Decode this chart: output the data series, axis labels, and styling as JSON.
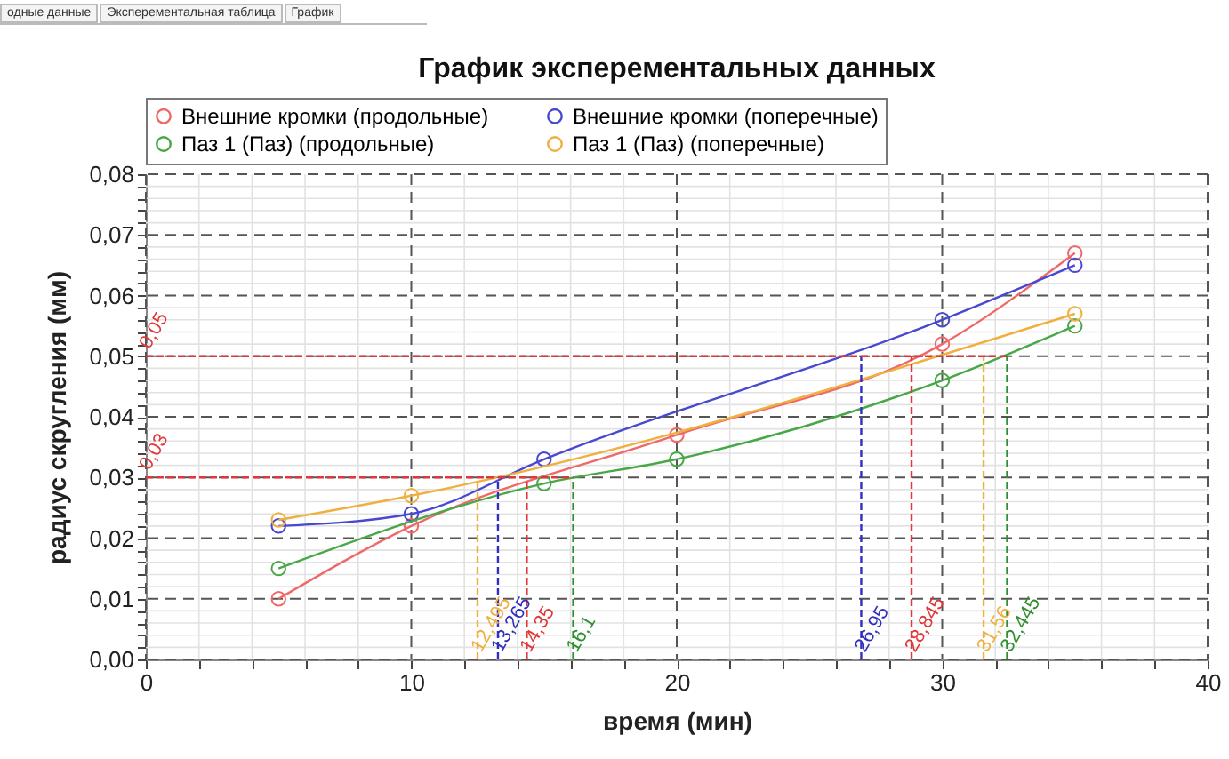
{
  "chart_data": {
    "type": "line",
    "title": "График эксперементальных данных",
    "xlabel": "время (мин)",
    "ylabel": "радиус скругления (мм)",
    "series": [
      {
        "name": "Внешние кромки (продольные)",
        "color": "#f06868",
        "x": [
          5,
          10,
          20,
          30,
          35
        ],
        "values": [
          0.01,
          0.022,
          0.037,
          0.052,
          0.067
        ]
      },
      {
        "name": "Внешние кромки (поперечные)",
        "color": "#4848d0",
        "x": [
          5,
          10,
          15,
          30,
          35
        ],
        "values": [
          0.022,
          0.024,
          0.033,
          0.056,
          0.065
        ]
      },
      {
        "name": "Паз 1 (Паз) (продольные)",
        "color": "#48a848",
        "x": [
          5,
          15,
          20,
          30,
          35
        ],
        "values": [
          0.015,
          0.029,
          0.033,
          0.046,
          0.055
        ]
      },
      {
        "name": "Паз 1 (Паз) (поперечные)",
        "color": "#f0b040",
        "x": [
          5,
          10,
          35
        ],
        "values": [
          0.023,
          0.027,
          0.057
        ]
      },
      {
        "type": "line",
        "color": "#f0b040",
        "line_style": "dashed",
        "marker": "none",
        "x": [
          12.495,
          12.495
        ],
        "values": [
          0,
          0.03
        ]
      },
      {
        "type": "line",
        "color": "#3030c0",
        "line_style": "dashed",
        "marker": "none",
        "x": [
          13.265,
          13.265
        ],
        "values": [
          0,
          0.03
        ]
      },
      {
        "type": "line",
        "color": "#e03838",
        "line_style": "dashed",
        "marker": "none",
        "x": [
          14.35,
          14.35
        ],
        "values": [
          0,
          0.03
        ]
      },
      {
        "type": "line",
        "color": "#309030",
        "line_style": "dashed",
        "marker": "none",
        "x": [
          16.1,
          16.1
        ],
        "values": [
          0,
          0.03
        ]
      },
      {
        "type": "line",
        "color": "#3030c0",
        "line_style": "dashed",
        "marker": "none",
        "x": [
          26.95,
          26.95
        ],
        "values": [
          0,
          0.05
        ]
      },
      {
        "type": "line",
        "color": "#e03838",
        "line_style": "dashed",
        "marker": "none",
        "x": [
          28.845,
          28.845
        ],
        "values": [
          0,
          0.05
        ]
      },
      {
        "type": "line",
        "color": "#f0b040",
        "line_style": "dashed",
        "marker": "none",
        "x": [
          31.56,
          31.56
        ],
        "values": [
          0,
          0.05
        ]
      },
      {
        "type": "line",
        "color": "#309030",
        "line_style": "dashed",
        "marker": "none",
        "x": [
          32.445,
          32.445
        ],
        "values": [
          0,
          0.05
        ]
      },
      {
        "type": "line",
        "color": "#e03838",
        "line_style": "dashed",
        "marker": "none",
        "x": [
          0,
          32.445
        ],
        "values": [
          0.05,
          0.05
        ]
      },
      {
        "type": "line",
        "color": "#e03838",
        "line_style": "dashed",
        "marker": "none",
        "x": [
          0,
          16.1
        ],
        "values": [
          0.03,
          0.03
        ]
      }
    ],
    "annotations": [
      "одные данные",
      "Эксперементальная таблица",
      "График",
      {
        "text": "0,05",
        "x": 0,
        "y": 0.05
      },
      {
        "text": "0,03",
        "x": 0,
        "y": 0.03
      },
      {
        "text": "12,495",
        "x": 12.495,
        "y": 0
      },
      {
        "text": "13,265",
        "x": 13.265,
        "y": 0
      },
      {
        "text": "14,35",
        "x": 14.35,
        "y": 0
      },
      {
        "text": "16,1",
        "x": 16.1,
        "y": 0
      },
      {
        "text": "26,95",
        "x": 26.95,
        "y": 0
      },
      {
        "text": "28,845",
        "x": 28.845,
        "y": 0
      },
      {
        "text": "31,56",
        "x": 31.56,
        "y": 0
      },
      {
        "text": "32,445",
        "x": 32.445,
        "y": 0
      }
    ],
    "xlim": [
      0,
      40
    ],
    "xticks": [
      0,
      {
        "value": 2,
        "label": null
      },
      {
        "value": 4,
        "label": null
      },
      {
        "value": 6,
        "label": null
      },
      {
        "value": 8,
        "label": null
      },
      10,
      {
        "value": 12,
        "label": null
      },
      {
        "value": 14,
        "label": null
      },
      {
        "value": 16,
        "label": null
      },
      {
        "value": 18,
        "label": null
      },
      20,
      {
        "value": 22,
        "label": null
      },
      {
        "value": 24,
        "label": null
      },
      {
        "value": 26,
        "label": null
      },
      {
        "value": 28,
        "label": null
      },
      30,
      {
        "value": 32,
        "label": null
      },
      {
        "value": 34,
        "label": null
      },
      {
        "value": 36,
        "label": null
      },
      {
        "value": 38,
        "label": null
      },
      40
    ],
    "ylim": [
      0,
      0.08
    ],
    "yticks": [
      {
        "value": 0,
        "label": "0,00"
      },
      {
        "value": 0.002,
        "label": null
      },
      {
        "value": 0.004,
        "label": null
      },
      {
        "value": 0.006,
        "label": null
      },
      {
        "value": 0.008,
        "label": null
      },
      {
        "value": 0.01,
        "label": "0,01"
      },
      {
        "value": 0.012,
        "label": null
      },
      {
        "value": 0.014,
        "label": null
      },
      {
        "value": 0.016,
        "label": null
      },
      {
        "value": 0.018,
        "label": null
      },
      {
        "value": 0.02,
        "label": "0,02"
      },
      {
        "value": 0.022,
        "label": null
      },
      {
        "value": 0.024,
        "label": null
      },
      {
        "value": 0.026,
        "label": null
      },
      {
        "value": 0.028,
        "label": null
      },
      {
        "value": 0.03,
        "label": "0,03"
      },
      {
        "value": 0.032,
        "label": null
      },
      {
        "value": 0.034,
        "label": null
      },
      {
        "value": 0.036,
        "label": null
      },
      {
        "value": 0.038,
        "label": null
      },
      {
        "value": 0.04,
        "label": "0,04"
      },
      {
        "value": 0.042,
        "label": null
      },
      {
        "value": 0.044,
        "label": null
      },
      {
        "value": 0.046,
        "label": null
      },
      {
        "value": 0.048,
        "label": null
      },
      {
        "value": 0.05,
        "label": "0,05"
      },
      {
        "value": 0.052,
        "label": null
      },
      {
        "value": 0.054,
        "label": null
      },
      {
        "value": 0.056,
        "label": null
      },
      {
        "value": 0.058,
        "label": null
      },
      {
        "value": 0.06,
        "label": "0,06"
      },
      {
        "value": 0.062,
        "label": null
      },
      {
        "value": 0.064,
        "label": null
      },
      {
        "value": 0.066,
        "label": null
      },
      {
        "value": 0.068,
        "label": null
      },
      {
        "value": 0.07,
        "label": "0,07"
      },
      {
        "value": 0.072,
        "label": null
      },
      {
        "value": 0.074,
        "label": null
      },
      {
        "value": 0.076,
        "label": null
      },
      {
        "value": 0.078,
        "label": null
      },
      {
        "value": 0.08,
        "label": "0,08"
      }
    ],
    "grid": true,
    "legend": "top",
    "marker": "circle",
    "line_style": "solid"
  }
}
